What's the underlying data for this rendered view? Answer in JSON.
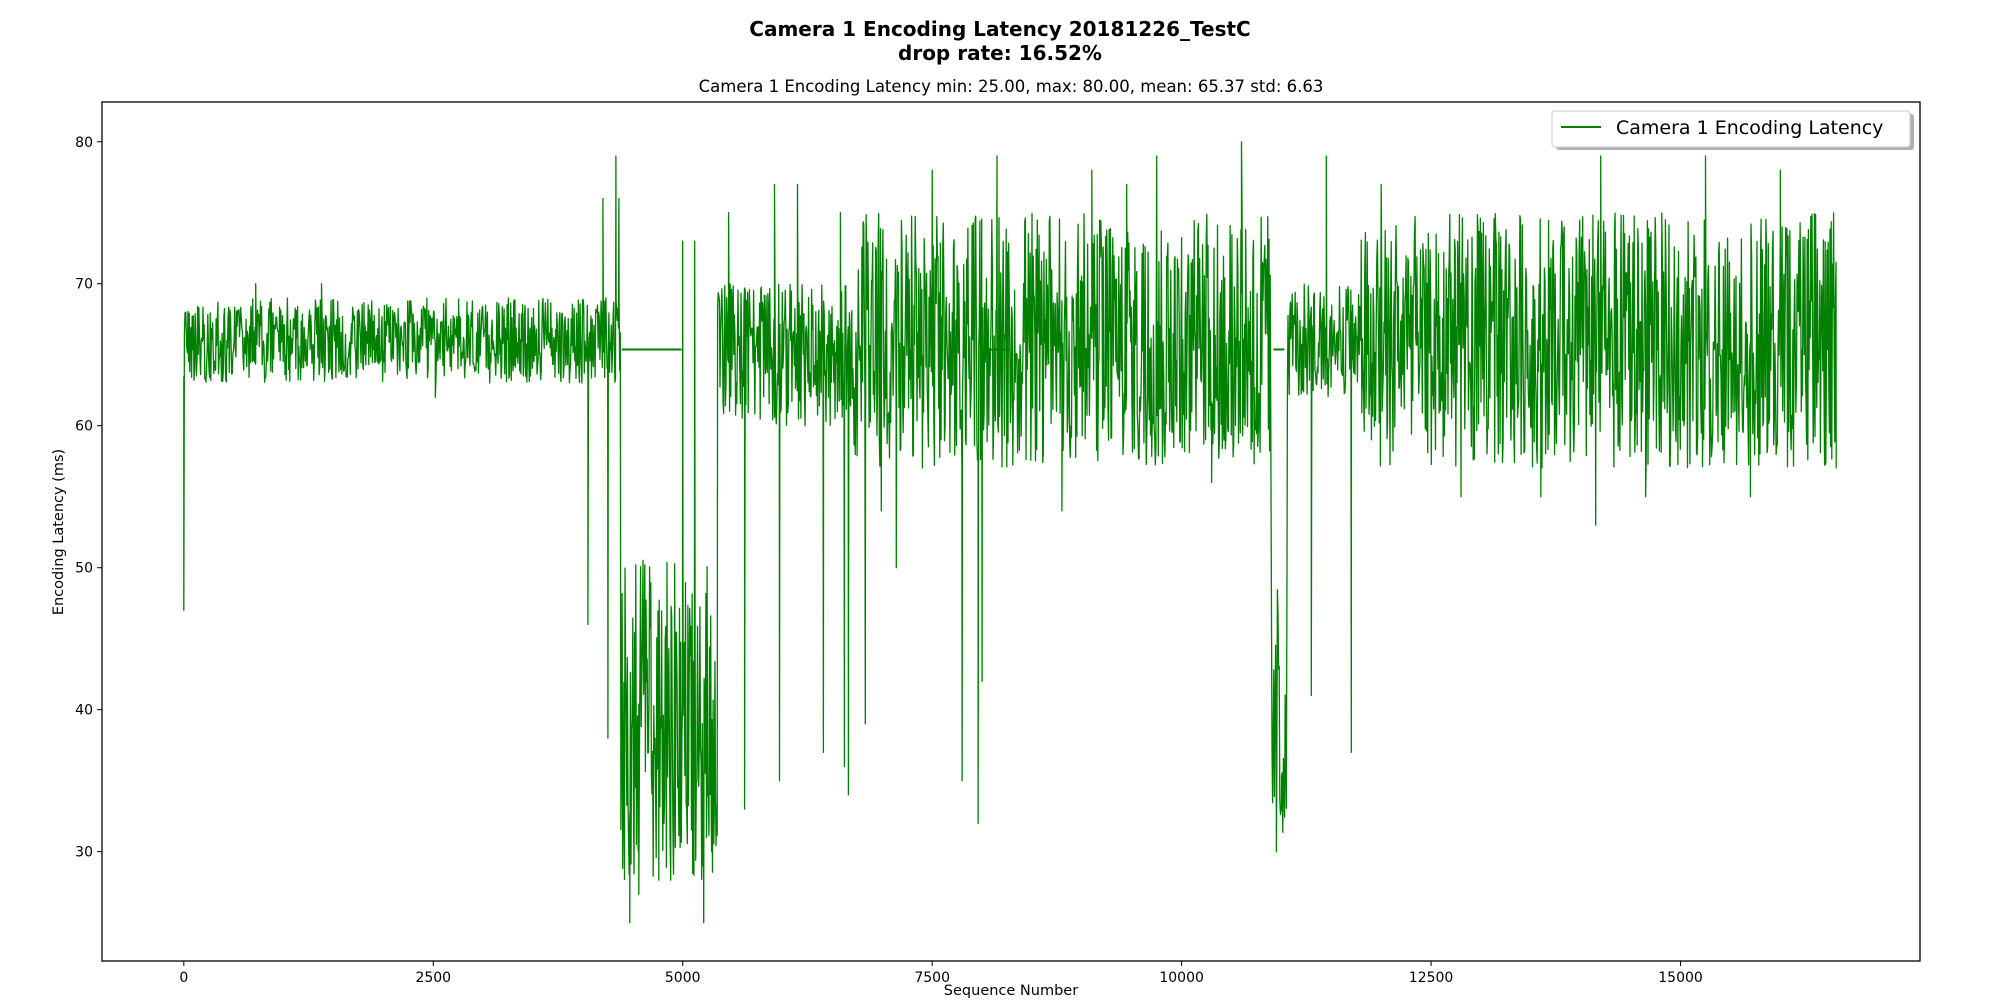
{
  "chart_data": {
    "type": "line",
    "title_line1": "Camera 1 Encoding Latency 20181226_TestC",
    "title_line2": "drop rate: 16.52%",
    "subtitle": "Camera 1 Encoding Latency min: 25.00, max: 80.00, mean: 65.37 std: 6.63",
    "xlabel": "Sequence Number",
    "ylabel": "Encoding Latency (ms)",
    "xlim": [
      -820,
      17400
    ],
    "ylim": [
      22.3,
      82.8
    ],
    "xticks": [
      0,
      2500,
      5000,
      7500,
      10000,
      12500,
      15000
    ],
    "yticks": [
      30,
      40,
      50,
      60,
      70,
      80
    ],
    "grid": false,
    "legend_position": "top-right",
    "color": "#008000",
    "series": [
      {
        "name": "Camera 1 Encoding Latency",
        "segments": [
          {
            "x0": 0,
            "x1": 4380,
            "low": 63,
            "high": 69,
            "mid": 66
          },
          {
            "x0": 4380,
            "x1": 5350,
            "low": 28,
            "high": 51,
            "mid": 38
          },
          {
            "x0": 5350,
            "x1": 6700,
            "low": 60,
            "high": 70,
            "mid": 66
          },
          {
            "x0": 6700,
            "x1": 10900,
            "low": 57,
            "high": 75,
            "mid": 66
          },
          {
            "x0": 10900,
            "x1": 11060,
            "low": 31,
            "high": 50,
            "mid": 38
          },
          {
            "x0": 11060,
            "x1": 11800,
            "low": 62,
            "high": 70,
            "mid": 66
          },
          {
            "x0": 11800,
            "x1": 16560,
            "low": 57,
            "high": 75,
            "mid": 66
          }
        ],
        "gaps": [
          {
            "x0": 4390,
            "x1": 4990,
            "value": 65.37
          },
          {
            "x0": 8050,
            "x1": 8280,
            "value": 65.37
          },
          {
            "x0": 10920,
            "x1": 11030,
            "value": 65.37
          }
        ],
        "spikes": [
          [
            0,
            47
          ],
          [
            20,
            68
          ],
          [
            720,
            70
          ],
          [
            1380,
            70
          ],
          [
            2520,
            62
          ],
          [
            4050,
            46
          ],
          [
            4200,
            76
          ],
          [
            4250,
            38
          ],
          [
            4330,
            79
          ],
          [
            4360,
            76
          ],
          [
            4470,
            25
          ],
          [
            4560,
            27
          ],
          [
            4760,
            28
          ],
          [
            4880,
            28
          ],
          [
            5000,
            73
          ],
          [
            5120,
            73
          ],
          [
            5210,
            25
          ],
          [
            5290,
            30
          ],
          [
            5460,
            75
          ],
          [
            5620,
            33
          ],
          [
            5920,
            77
          ],
          [
            5970,
            35
          ],
          [
            6150,
            77
          ],
          [
            6410,
            37
          ],
          [
            6580,
            75
          ],
          [
            6620,
            36
          ],
          [
            6660,
            34
          ],
          [
            6830,
            39
          ],
          [
            6990,
            54
          ],
          [
            7140,
            50
          ],
          [
            7500,
            78
          ],
          [
            7800,
            35
          ],
          [
            7960,
            32
          ],
          [
            8000,
            42
          ],
          [
            8150,
            79
          ],
          [
            8800,
            54
          ],
          [
            9100,
            78
          ],
          [
            9450,
            77
          ],
          [
            9750,
            79
          ],
          [
            10300,
            56
          ],
          [
            10600,
            80
          ],
          [
            10950,
            30
          ],
          [
            11000,
            33
          ],
          [
            11050,
            35
          ],
          [
            11300,
            41
          ],
          [
            11450,
            79
          ],
          [
            11700,
            37
          ],
          [
            12000,
            77
          ],
          [
            12800,
            55
          ],
          [
            13600,
            55
          ],
          [
            14150,
            53
          ],
          [
            14200,
            79
          ],
          [
            14650,
            55
          ],
          [
            15250,
            79
          ],
          [
            15700,
            55
          ],
          [
            16000,
            78
          ],
          [
            16560,
            57
          ]
        ]
      }
    ]
  }
}
